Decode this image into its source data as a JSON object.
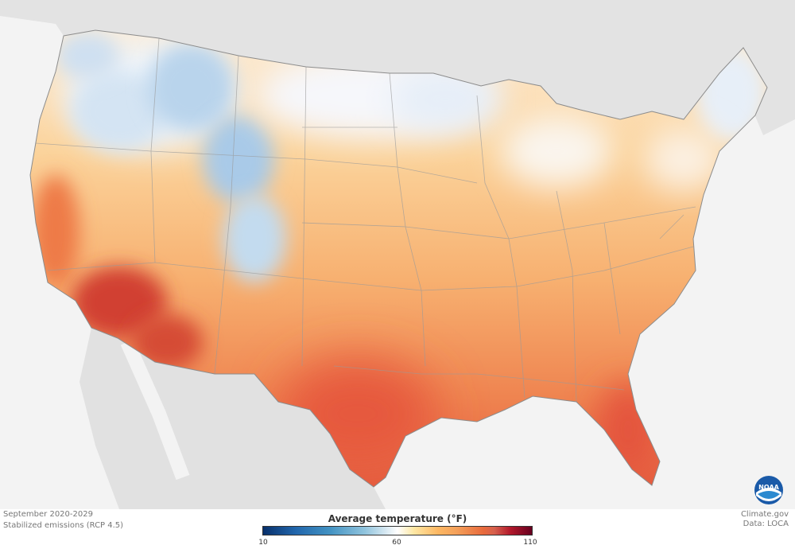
{
  "caption": {
    "period": "September 2020-2029",
    "scenario": "Stabilized emissions (RCP 4.5)"
  },
  "credits": {
    "source": "Climate.gov",
    "data": "Data: LOCA"
  },
  "legend": {
    "title": "Average temperature (°F)",
    "ticks": [
      "10",
      "60",
      "110"
    ],
    "range": [
      10,
      110
    ],
    "colors": {
      "cold": "#08306b",
      "cool": "#4393c3",
      "neutral": "#ffffff",
      "warm": "#fdb863",
      "hot": "#d6604d",
      "hottest": "#67001f"
    }
  },
  "logo": {
    "text": "NOAA",
    "name": "noaa-logo"
  }
}
